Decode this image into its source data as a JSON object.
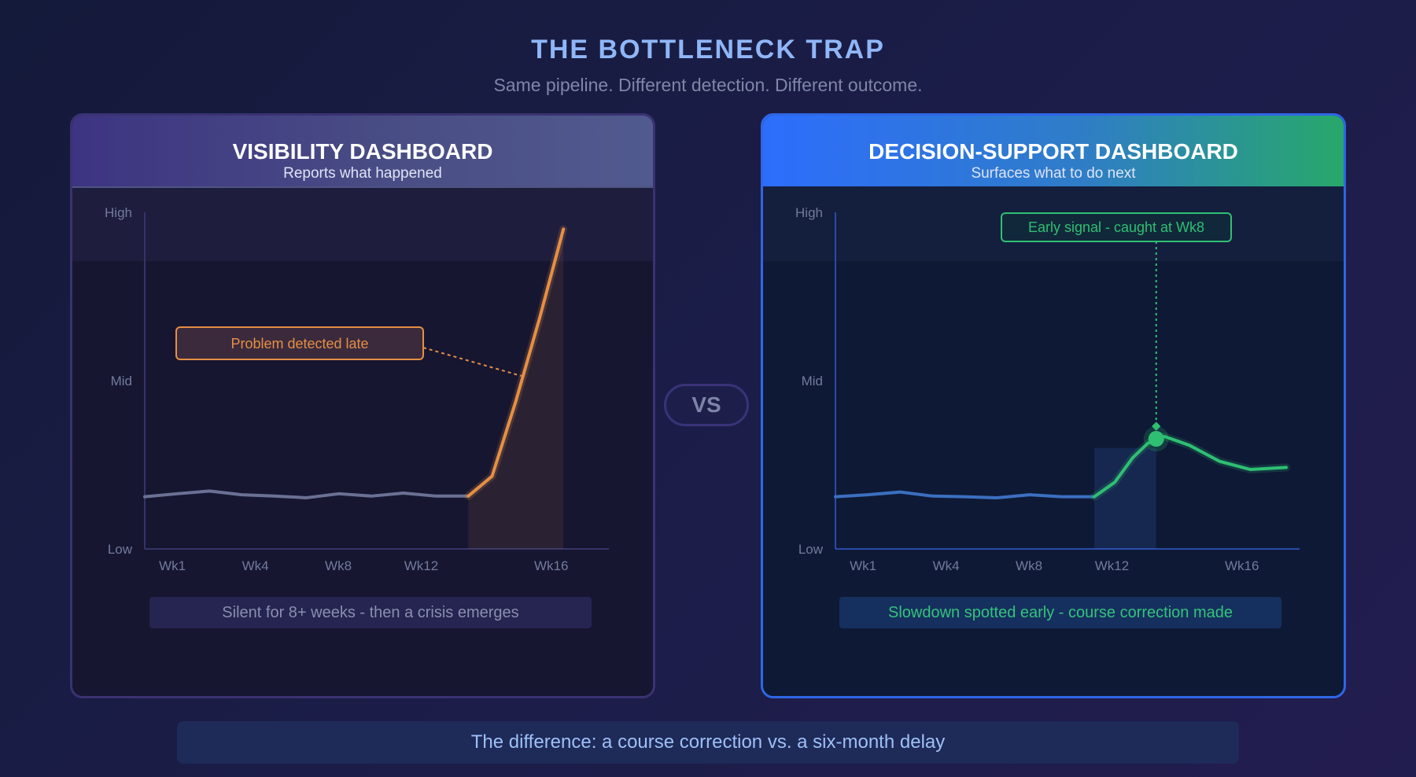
{
  "header": {
    "title": "THE BOTTLENECK TRAP",
    "subtitle": "Same pipeline. Different detection. Different outcome."
  },
  "vs_label": "VS",
  "footer_text": "The difference: a course correction vs. a six-month delay",
  "colors": {
    "baseline_left": "#6b7194",
    "crisis": "#e58f45",
    "baseline_right": "#3b6fc0",
    "signal": "#2fbf72",
    "axis_left": "#34346a",
    "axis_right": "#2a4aa8"
  },
  "chart_data": [
    {
      "type": "line",
      "panel_title": "VISIBILITY DASHBOARD",
      "panel_subtitle": "Reports what happened",
      "y_tick_labels": [
        "High",
        "Mid",
        "Low"
      ],
      "x_tick_labels": [
        {
          "label": "Wk1",
          "x": 1
        },
        {
          "label": "Wk4",
          "x": 4
        },
        {
          "label": "Wk8",
          "x": 7
        },
        {
          "label": "Wk12",
          "x": 10
        },
        {
          "label": "Wk16",
          "x": 14.7
        }
      ],
      "xlim": [
        0,
        16.5
      ],
      "ylim": [
        0,
        100
      ],
      "series": [
        {
          "role": "baseline",
          "color": "#6b7194",
          "x": [
            0,
            1.17,
            2.34,
            3.51,
            4.68,
            5.85,
            7.02,
            8.19,
            9.36,
            10.53,
            11.7
          ],
          "y": [
            15.5,
            16.4,
            17.2,
            16.1,
            15.7,
            15.2,
            16.4,
            15.7,
            16.6,
            15.7,
            15.7
          ]
        },
        {
          "role": "crisis",
          "color": "#e58f45",
          "area": true,
          "x": [
            11.7,
            12.56,
            13.42,
            14.28,
            15.14
          ],
          "y": [
            15.7,
            21.6,
            43.9,
            68.6,
            95.0
          ]
        }
      ],
      "annotation": {
        "text": "Problem detected late",
        "at": {
          "x": 13.62,
          "y": 51.4
        }
      },
      "caption": "Silent for 8+ weeks - then a crisis emerges"
    },
    {
      "type": "line",
      "panel_title": "DECISION-SUPPORT DASHBOARD",
      "panel_subtitle": "Surfaces what to do next",
      "y_tick_labels": [
        "High",
        "Mid",
        "Low"
      ],
      "x_tick_labels": [
        {
          "label": "Wk1",
          "x": 1
        },
        {
          "label": "Wk4",
          "x": 4
        },
        {
          "label": "Wk8",
          "x": 7
        },
        {
          "label": "Wk12",
          "x": 10
        },
        {
          "label": "Wk16",
          "x": 14.7
        }
      ],
      "xlim": [
        0,
        16.5
      ],
      "ylim": [
        0,
        100
      ],
      "series": [
        {
          "role": "baseline",
          "color": "#3b6fc0",
          "x": [
            0,
            1.17,
            2.34,
            3.51,
            4.68,
            5.85,
            7.02,
            8.19,
            9.36
          ],
          "y": [
            15.5,
            16.1,
            16.9,
            15.7,
            15.5,
            15.2,
            16.1,
            15.5,
            15.5
          ]
        },
        {
          "role": "signal",
          "color": "#2fbf72",
          "x": [
            9.36,
            10.1,
            10.75,
            11.3,
            11.9,
            12.8,
            13.9,
            15.0,
            16.3
          ],
          "y": [
            15.5,
            19.8,
            27.1,
            31.4,
            33.4,
            30.8,
            26.0,
            23.6,
            24.2
          ]
        }
      ],
      "shaded_window": {
        "x": [
          9.36,
          11.6
        ]
      },
      "marker": {
        "x": 11.6,
        "y": 32.7
      },
      "annotation": {
        "text": "Early signal - caught at Wk8",
        "at": {
          "x": 11.6,
          "y": 32.7
        }
      },
      "caption": "Slowdown spotted early - course correction made"
    }
  ]
}
